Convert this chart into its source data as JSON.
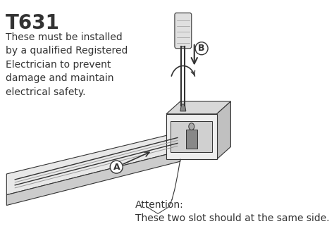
{
  "title": "T631",
  "body_text": "These must be installed\nby a qualified Registered\nElectrician to prevent\ndamage and maintain\nelectrical safety.",
  "attention_text": "Attention:\nThese two slot should at the same side.",
  "label_A": "A",
  "label_B": "B",
  "bg_color": "#ffffff",
  "line_color": "#333333",
  "light_gray": "#aaaaaa",
  "title_fontsize": 20,
  "body_fontsize": 10,
  "attention_fontsize": 10
}
